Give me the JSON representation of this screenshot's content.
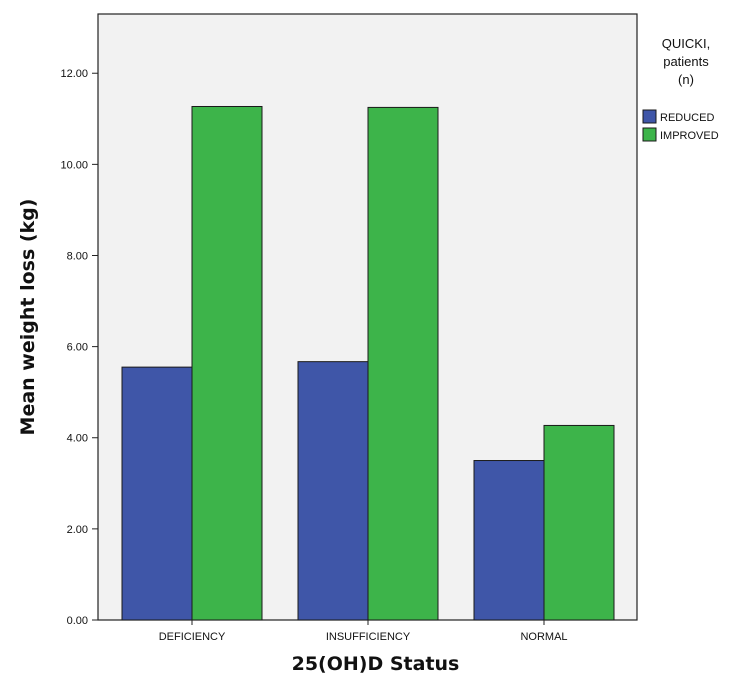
{
  "chart_data": {
    "type": "bar",
    "categories": [
      "DEFICIENCY",
      "INSUFFICIENCY",
      "NORMAL"
    ],
    "series": [
      {
        "name": "REDUCED",
        "color": "#3f56a8",
        "values": [
          5.55,
          5.67,
          3.5
        ]
      },
      {
        "name": "IMPROVED",
        "color": "#3db44a",
        "values": [
          11.27,
          11.25,
          4.27
        ]
      }
    ],
    "xlabel": "25(OH)D Status",
    "ylabel": "Mean weight loss (kg)",
    "ylim": [
      0,
      13.3
    ],
    "yticks": [
      "0.00",
      "2.00",
      "4.00",
      "6.00",
      "8.00",
      "10.00",
      "12.00"
    ],
    "legend": {
      "title_lines": [
        "QUICKI,",
        "patients",
        "(n)"
      ],
      "placement": "right"
    },
    "plot_background": "#f2f2f2",
    "grid": false
  }
}
